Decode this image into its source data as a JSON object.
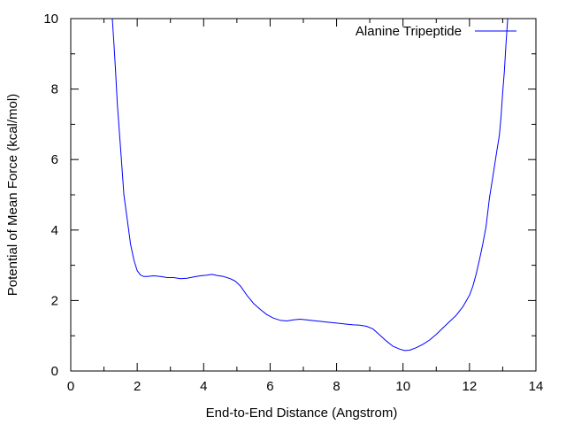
{
  "chart_data": {
    "type": "line",
    "title": "",
    "xlabel": "End-to-End Distance (Angstrom)",
    "ylabel": "Potential of Mean Force (kcal/mol)",
    "xlim": [
      0,
      14
    ],
    "ylim": [
      0,
      10
    ],
    "x_ticks": [
      "0",
      "2",
      "4",
      "6",
      "8",
      "10",
      "12",
      "14"
    ],
    "y_ticks": [
      "0",
      "2",
      "4",
      "6",
      "8",
      "10"
    ],
    "grid": false,
    "legend_position": "top-right",
    "series": [
      {
        "name": "Alanine Tripeptide",
        "color": "#0000ff",
        "points": [
          [
            1.25,
            10.0
          ],
          [
            1.3,
            9.3
          ],
          [
            1.35,
            8.5
          ],
          [
            1.4,
            7.6
          ],
          [
            1.5,
            6.3
          ],
          [
            1.6,
            5.0
          ],
          [
            1.7,
            4.3
          ],
          [
            1.8,
            3.6
          ],
          [
            1.9,
            3.15
          ],
          [
            2.0,
            2.85
          ],
          [
            2.1,
            2.72
          ],
          [
            2.2,
            2.68
          ],
          [
            2.3,
            2.68
          ],
          [
            2.5,
            2.7
          ],
          [
            2.7,
            2.68
          ],
          [
            2.9,
            2.65
          ],
          [
            3.1,
            2.65
          ],
          [
            3.3,
            2.62
          ],
          [
            3.5,
            2.63
          ],
          [
            3.7,
            2.67
          ],
          [
            3.9,
            2.7
          ],
          [
            4.1,
            2.72
          ],
          [
            4.25,
            2.74
          ],
          [
            4.4,
            2.71
          ],
          [
            4.6,
            2.68
          ],
          [
            4.8,
            2.62
          ],
          [
            4.95,
            2.55
          ],
          [
            5.1,
            2.42
          ],
          [
            5.3,
            2.15
          ],
          [
            5.5,
            1.92
          ],
          [
            5.7,
            1.75
          ],
          [
            5.9,
            1.6
          ],
          [
            6.1,
            1.5
          ],
          [
            6.3,
            1.44
          ],
          [
            6.5,
            1.42
          ],
          [
            6.7,
            1.45
          ],
          [
            6.9,
            1.47
          ],
          [
            7.1,
            1.45
          ],
          [
            7.3,
            1.43
          ],
          [
            7.5,
            1.41
          ],
          [
            7.7,
            1.39
          ],
          [
            7.9,
            1.37
          ],
          [
            8.1,
            1.35
          ],
          [
            8.3,
            1.33
          ],
          [
            8.5,
            1.31
          ],
          [
            8.7,
            1.3
          ],
          [
            8.9,
            1.27
          ],
          [
            9.1,
            1.19
          ],
          [
            9.3,
            1.02
          ],
          [
            9.5,
            0.85
          ],
          [
            9.7,
            0.7
          ],
          [
            9.9,
            0.62
          ],
          [
            10.05,
            0.58
          ],
          [
            10.2,
            0.59
          ],
          [
            10.4,
            0.66
          ],
          [
            10.6,
            0.76
          ],
          [
            10.8,
            0.88
          ],
          [
            11.0,
            1.04
          ],
          [
            11.2,
            1.22
          ],
          [
            11.4,
            1.4
          ],
          [
            11.6,
            1.58
          ],
          [
            11.8,
            1.82
          ],
          [
            12.0,
            2.15
          ],
          [
            12.1,
            2.4
          ],
          [
            12.2,
            2.75
          ],
          [
            12.3,
            3.15
          ],
          [
            12.4,
            3.6
          ],
          [
            12.5,
            4.1
          ],
          [
            12.6,
            4.9
          ],
          [
            12.7,
            5.5
          ],
          [
            12.8,
            6.1
          ],
          [
            12.9,
            6.7
          ],
          [
            12.95,
            7.2
          ],
          [
            13.0,
            7.9
          ],
          [
            13.05,
            8.5
          ],
          [
            13.1,
            9.3
          ],
          [
            13.15,
            10.0
          ]
        ]
      }
    ]
  }
}
